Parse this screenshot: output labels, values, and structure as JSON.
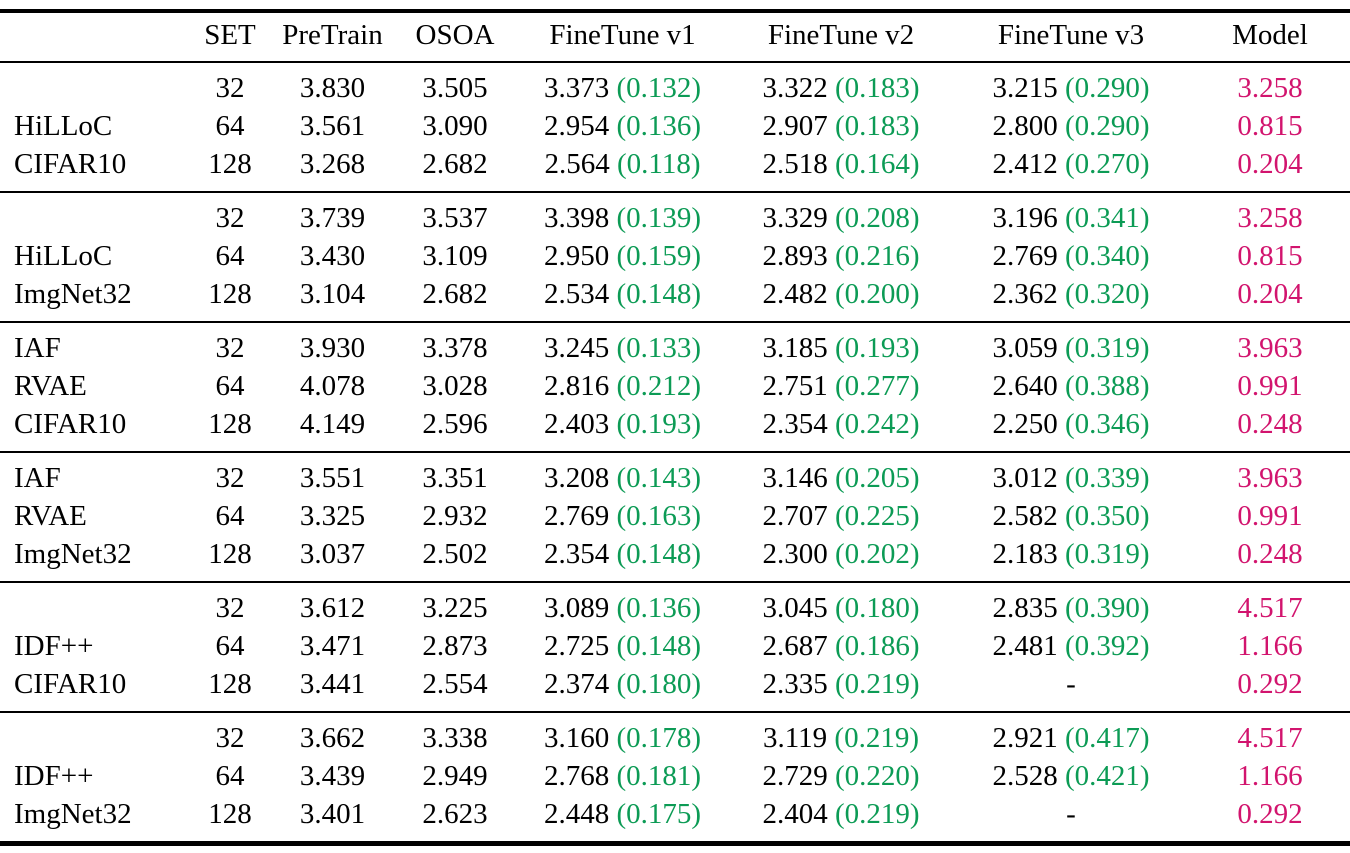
{
  "table": {
    "columns": [
      "",
      "SET",
      "PreTrain",
      "OSOA",
      "FineTune v1",
      "FineTune v2",
      "FineTune v3",
      "Model"
    ],
    "colors": {
      "text": "#000000",
      "rule": "#000000",
      "background": "#ffffff",
      "delta_green": "#0c9b55",
      "model_pink": "#d2146e"
    },
    "groups": [
      {
        "labels": [
          "",
          "HiLLoC",
          "CIFAR10"
        ],
        "rows": [
          {
            "set": "32",
            "pretrain": "3.830",
            "osoa": "3.505",
            "ft1": "3.373",
            "ft1_delta": "(0.132)",
            "ft2": "3.322",
            "ft2_delta": "(0.183)",
            "ft3": "3.215",
            "ft3_delta": "(0.290)",
            "model": "3.258"
          },
          {
            "set": "64",
            "pretrain": "3.561",
            "osoa": "3.090",
            "ft1": "2.954",
            "ft1_delta": "(0.136)",
            "ft2": "2.907",
            "ft2_delta": "(0.183)",
            "ft3": "2.800",
            "ft3_delta": "(0.290)",
            "model": "0.815"
          },
          {
            "set": "128",
            "pretrain": "3.268",
            "osoa": "2.682",
            "ft1": "2.564",
            "ft1_delta": "(0.118)",
            "ft2": "2.518",
            "ft2_delta": "(0.164)",
            "ft3": "2.412",
            "ft3_delta": "(0.270)",
            "model": "0.204"
          }
        ]
      },
      {
        "labels": [
          "",
          "HiLLoC",
          "ImgNet32"
        ],
        "rows": [
          {
            "set": "32",
            "pretrain": "3.739",
            "osoa": "3.537",
            "ft1": "3.398",
            "ft1_delta": "(0.139)",
            "ft2": "3.329",
            "ft2_delta": "(0.208)",
            "ft3": "3.196",
            "ft3_delta": "(0.341)",
            "model": "3.258"
          },
          {
            "set": "64",
            "pretrain": "3.430",
            "osoa": "3.109",
            "ft1": "2.950",
            "ft1_delta": "(0.159)",
            "ft2": "2.893",
            "ft2_delta": "(0.216)",
            "ft3": "2.769",
            "ft3_delta": "(0.340)",
            "model": "0.815"
          },
          {
            "set": "128",
            "pretrain": "3.104",
            "osoa": "2.682",
            "ft1": "2.534",
            "ft1_delta": "(0.148)",
            "ft2": "2.482",
            "ft2_delta": "(0.200)",
            "ft3": "2.362",
            "ft3_delta": "(0.320)",
            "model": "0.204"
          }
        ]
      },
      {
        "labels": [
          "IAF",
          "RVAE",
          "CIFAR10"
        ],
        "rows": [
          {
            "set": "32",
            "pretrain": "3.930",
            "osoa": "3.378",
            "ft1": "3.245",
            "ft1_delta": "(0.133)",
            "ft2": "3.185",
            "ft2_delta": "(0.193)",
            "ft3": "3.059",
            "ft3_delta": "(0.319)",
            "model": "3.963"
          },
          {
            "set": "64",
            "pretrain": "4.078",
            "osoa": "3.028",
            "ft1": "2.816",
            "ft1_delta": "(0.212)",
            "ft2": "2.751",
            "ft2_delta": "(0.277)",
            "ft3": "2.640",
            "ft3_delta": "(0.388)",
            "model": "0.991"
          },
          {
            "set": "128",
            "pretrain": "4.149",
            "osoa": "2.596",
            "ft1": "2.403",
            "ft1_delta": "(0.193)",
            "ft2": "2.354",
            "ft2_delta": "(0.242)",
            "ft3": "2.250",
            "ft3_delta": "(0.346)",
            "model": "0.248"
          }
        ]
      },
      {
        "labels": [
          "IAF",
          "RVAE",
          "ImgNet32"
        ],
        "rows": [
          {
            "set": "32",
            "pretrain": "3.551",
            "osoa": "3.351",
            "ft1": "3.208",
            "ft1_delta": "(0.143)",
            "ft2": "3.146",
            "ft2_delta": "(0.205)",
            "ft3": "3.012",
            "ft3_delta": "(0.339)",
            "model": "3.963"
          },
          {
            "set": "64",
            "pretrain": "3.325",
            "osoa": "2.932",
            "ft1": "2.769",
            "ft1_delta": "(0.163)",
            "ft2": "2.707",
            "ft2_delta": "(0.225)",
            "ft3": "2.582",
            "ft3_delta": "(0.350)",
            "model": "0.991"
          },
          {
            "set": "128",
            "pretrain": "3.037",
            "osoa": "2.502",
            "ft1": "2.354",
            "ft1_delta": "(0.148)",
            "ft2": "2.300",
            "ft2_delta": "(0.202)",
            "ft3": "2.183",
            "ft3_delta": "(0.319)",
            "model": "0.248"
          }
        ]
      },
      {
        "labels": [
          "",
          "IDF++",
          "CIFAR10"
        ],
        "rows": [
          {
            "set": "32",
            "pretrain": "3.612",
            "osoa": "3.225",
            "ft1": "3.089",
            "ft1_delta": "(0.136)",
            "ft2": "3.045",
            "ft2_delta": "(0.180)",
            "ft3": "2.835",
            "ft3_delta": "(0.390)",
            "model": "4.517"
          },
          {
            "set": "64",
            "pretrain": "3.471",
            "osoa": "2.873",
            "ft1": "2.725",
            "ft1_delta": "(0.148)",
            "ft2": "2.687",
            "ft2_delta": "(0.186)",
            "ft3": "2.481",
            "ft3_delta": "(0.392)",
            "model": "1.166"
          },
          {
            "set": "128",
            "pretrain": "3.441",
            "osoa": "2.554",
            "ft1": "2.374",
            "ft1_delta": "(0.180)",
            "ft2": "2.335",
            "ft2_delta": "(0.219)",
            "ft3": "-",
            "ft3_delta": "",
            "model": "0.292"
          }
        ]
      },
      {
        "labels": [
          "",
          "IDF++",
          "ImgNet32"
        ],
        "rows": [
          {
            "set": "32",
            "pretrain": "3.662",
            "osoa": "3.338",
            "ft1": "3.160",
            "ft1_delta": "(0.178)",
            "ft2": "3.119",
            "ft2_delta": "(0.219)",
            "ft3": "2.921",
            "ft3_delta": "(0.417)",
            "model": "4.517"
          },
          {
            "set": "64",
            "pretrain": "3.439",
            "osoa": "2.949",
            "ft1": "2.768",
            "ft1_delta": "(0.181)",
            "ft2": "2.729",
            "ft2_delta": "(0.220)",
            "ft3": "2.528",
            "ft3_delta": "(0.421)",
            "model": "1.166"
          },
          {
            "set": "128",
            "pretrain": "3.401",
            "osoa": "2.623",
            "ft1": "2.448",
            "ft1_delta": "(0.175)",
            "ft2": "2.404",
            "ft2_delta": "(0.219)",
            "ft3": "-",
            "ft3_delta": "",
            "model": "0.292"
          }
        ]
      }
    ]
  }
}
